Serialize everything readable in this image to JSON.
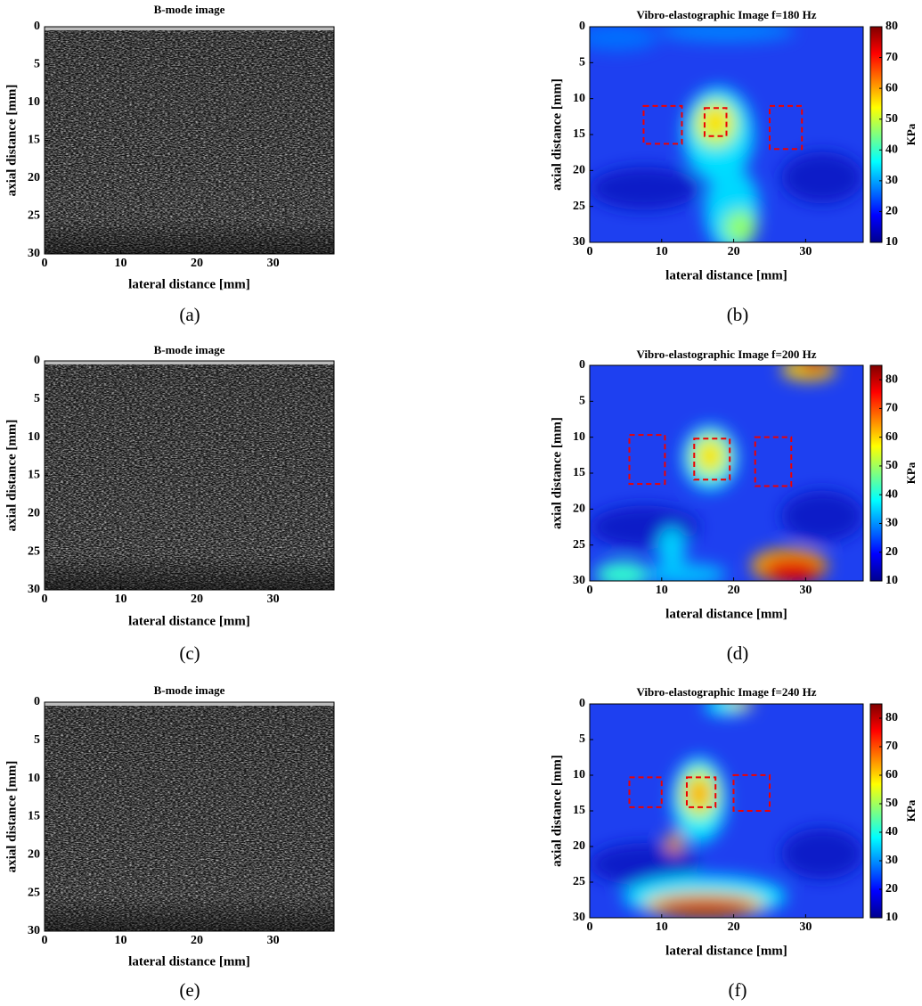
{
  "panels": [
    {
      "caption": "(a)",
      "type": "bmode",
      "title": "B-mode image",
      "xlabel": "lateral distance [mm]",
      "ylabel": "axial distance [mm]",
      "xlim": [
        0,
        38
      ],
      "ylim": [
        0,
        30
      ],
      "y_reversed": true,
      "xticks": [
        0,
        10,
        20,
        30
      ],
      "yticks": [
        0,
        5,
        10,
        15,
        20,
        25,
        30
      ]
    },
    {
      "caption": "(b)",
      "type": "elastogram",
      "title": "Vibro-elastographic Image f=180 Hz",
      "xlabel": "lateral distance [mm]",
      "ylabel": "axial distance [mm]",
      "xlim": [
        0,
        38
      ],
      "ylim": [
        0,
        30
      ],
      "y_reversed": true,
      "xticks": [
        0,
        10,
        20,
        30
      ],
      "yticks": [
        0,
        5,
        10,
        15,
        20,
        25,
        30
      ],
      "colorbar": {
        "label": "KPa",
        "colormap": "jet",
        "clim": [
          10,
          80
        ],
        "ticks": [
          10,
          20,
          30,
          40,
          50,
          60,
          70,
          80
        ]
      }
    },
    {
      "caption": "(c)",
      "type": "bmode",
      "title": "B-mode image",
      "xlabel": "lateral distance [mm]",
      "ylabel": "axial distance [mm]",
      "xlim": [
        0,
        38
      ],
      "ylim": [
        0,
        30
      ],
      "y_reversed": true,
      "xticks": [
        0,
        10,
        20,
        30
      ],
      "yticks": [
        0,
        5,
        10,
        15,
        20,
        25,
        30
      ]
    },
    {
      "caption": "(d)",
      "type": "elastogram",
      "title": "Vibro-elastographic Image f=200 Hz",
      "xlabel": "lateral distance [mm]",
      "ylabel": "axial distance [mm]",
      "xlim": [
        0,
        38
      ],
      "ylim": [
        0,
        30
      ],
      "y_reversed": true,
      "xticks": [
        0,
        10,
        20,
        30
      ],
      "yticks": [
        0,
        5,
        10,
        15,
        20,
        25,
        30
      ],
      "colorbar": {
        "label": "KPa",
        "colormap": "jet",
        "clim": [
          10,
          85
        ],
        "ticks": [
          10,
          20,
          30,
          40,
          50,
          60,
          70,
          80
        ]
      }
    },
    {
      "caption": "(e)",
      "type": "bmode",
      "title": "B-mode image",
      "xlabel": "lateral distance [mm]",
      "ylabel": "axial distance [mm]",
      "xlim": [
        0,
        38
      ],
      "ylim": [
        0,
        30
      ],
      "y_reversed": true,
      "xticks": [
        0,
        10,
        20,
        30
      ],
      "yticks": [
        0,
        5,
        10,
        15,
        20,
        25,
        30
      ]
    },
    {
      "caption": "(f)",
      "type": "elastogram",
      "title": "Vibro-elastographic Image f=240 Hz",
      "xlabel": "lateral distance [mm]",
      "ylabel": "axial distance [mm]",
      "xlim": [
        0,
        38
      ],
      "ylim": [
        0,
        30
      ],
      "y_reversed": true,
      "xticks": [
        0,
        10,
        20,
        30
      ],
      "yticks": [
        0,
        5,
        10,
        15,
        20,
        25,
        30
      ],
      "colorbar": {
        "label": "KPa",
        "colormap": "jet",
        "clim": [
          10,
          85
        ],
        "ticks": [
          10,
          20,
          30,
          40,
          50,
          60,
          70,
          80
        ]
      }
    }
  ]
}
